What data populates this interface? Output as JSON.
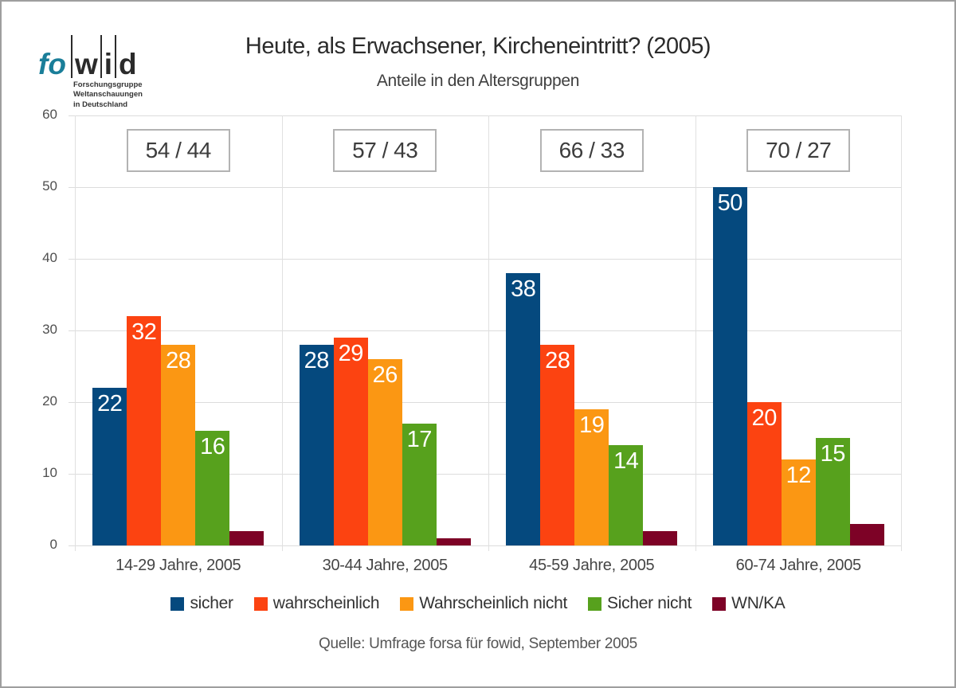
{
  "logo": {
    "fo": "fo",
    "letters": [
      "w",
      "i",
      "d"
    ],
    "sub_lines": [
      "Forschungsgruppe",
      "Weltanschauungen",
      "in Deutschland"
    ]
  },
  "header": {
    "title": "Heute, als Erwachsener, Kircheneintritt? (2005)",
    "subtitle": "Anteile in den Altersgruppen"
  },
  "chart_data": {
    "type": "bar",
    "title": "Heute, als Erwachsener, Kircheneintritt? (2005)",
    "subtitle": "Anteile in den Altersgruppen",
    "categories": [
      "14-29 Jahre, 2005",
      "30-44 Jahre, 2005",
      "45-59 Jahre, 2005",
      "60-74 Jahre, 2005"
    ],
    "series": [
      {
        "name": "sicher",
        "color": "#05497e",
        "values": [
          22,
          28,
          38,
          50
        ],
        "value_labels": true
      },
      {
        "name": "wahrscheinlich",
        "color": "#fc4311",
        "values": [
          32,
          29,
          28,
          20
        ],
        "value_labels": true
      },
      {
        "name": "Wahrscheinlich nicht",
        "color": "#fb9713",
        "values": [
          28,
          26,
          19,
          12
        ],
        "value_labels": true
      },
      {
        "name": "Sicher nicht",
        "color": "#57a11d",
        "values": [
          16,
          17,
          14,
          15
        ],
        "value_labels": true
      },
      {
        "name": "WN/KA",
        "color": "#7d0226",
        "values": [
          2,
          1,
          2,
          3
        ],
        "value_labels": false
      }
    ],
    "group_annotations": [
      "54 / 44",
      "57 / 43",
      "66 / 33",
      "70 / 27"
    ],
    "ylim": [
      0,
      60
    ],
    "yticks": [
      0,
      10,
      20,
      30,
      40,
      50,
      60
    ],
    "grid": true,
    "legend_position": "bottom"
  },
  "footer": {
    "source": "Quelle: Umfrage forsa für fowid, September 2005"
  }
}
